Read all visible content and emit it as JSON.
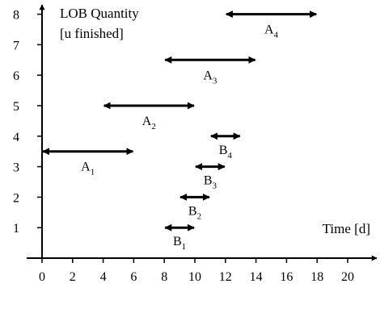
{
  "chart_data": {
    "type": "range-bar",
    "ylabel_line1": "LOB Quantity",
    "ylabel_line2": "[u finished]",
    "xlabel": "Time [d]",
    "xlim": [
      0,
      21
    ],
    "ylim": [
      0,
      8.6
    ],
    "xticks": [
      0,
      2,
      4,
      6,
      8,
      10,
      12,
      14,
      16,
      18,
      20
    ],
    "yticks": [
      1,
      2,
      3,
      4,
      5,
      6,
      7,
      8
    ],
    "grid": false,
    "bars": [
      {
        "letter": "A",
        "index": "1",
        "start": 0,
        "end": 6,
        "y": 3.5
      },
      {
        "letter": "A",
        "index": "2",
        "start": 4,
        "end": 10,
        "y": 5
      },
      {
        "letter": "A",
        "index": "3",
        "start": 8,
        "end": 14,
        "y": 6.5
      },
      {
        "letter": "A",
        "index": "4",
        "start": 12,
        "end": 18,
        "y": 8
      },
      {
        "letter": "B",
        "index": "1",
        "start": 8,
        "end": 10,
        "y": 1
      },
      {
        "letter": "B",
        "index": "2",
        "start": 9,
        "end": 11,
        "y": 2
      },
      {
        "letter": "B",
        "index": "3",
        "start": 10,
        "end": 12,
        "y": 3
      },
      {
        "letter": "B",
        "index": "4",
        "start": 11,
        "end": 13,
        "y": 4
      }
    ]
  }
}
